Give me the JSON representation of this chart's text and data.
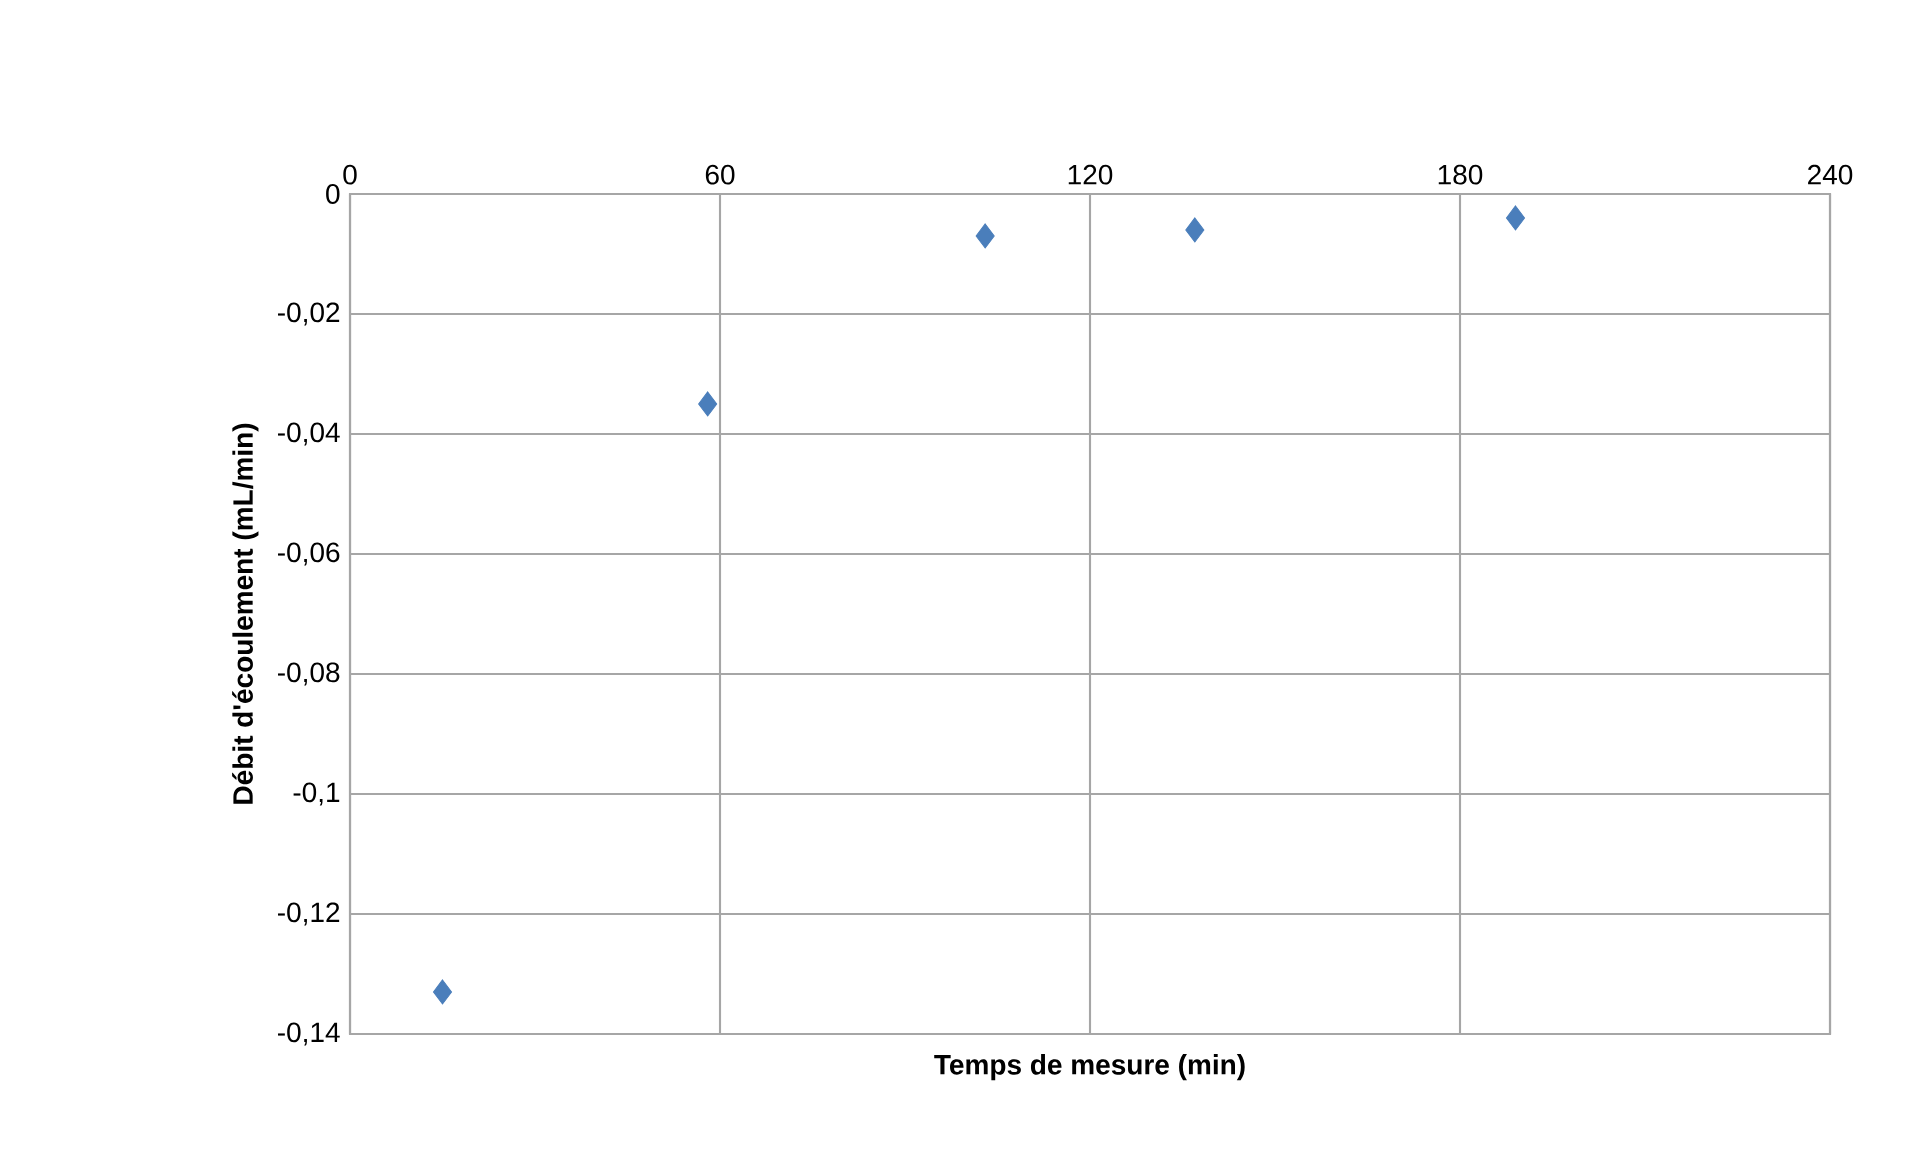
{
  "chart_data": {
    "type": "scatter",
    "xlabel": "Temps de mesure (min)",
    "ylabel": "Débit d'écoulement (mL/min)",
    "x": [
      15,
      58,
      103,
      137,
      189
    ],
    "values": [
      -0.133,
      -0.035,
      -0.007,
      -0.006,
      -0.004
    ],
    "color": "#4a7ebb",
    "marker": "diamond",
    "grid": true,
    "xlim": [
      0,
      240
    ],
    "xticks": [
      0,
      60,
      120,
      180,
      240
    ],
    "ylim": [
      -0.14,
      0
    ],
    "yticks": [
      {
        "value": -0.14,
        "label": "-0,14"
      },
      {
        "value": -0.12,
        "label": "-0,12"
      },
      {
        "value": -0.1,
        "label": "-0,1"
      },
      {
        "value": -0.08,
        "label": "-0,08"
      },
      {
        "value": -0.06,
        "label": "-0,06"
      },
      {
        "value": -0.04,
        "label": "-0,04"
      },
      {
        "value": -0.02,
        "label": "-0,02"
      },
      {
        "value": 0,
        "label": "0"
      }
    ]
  }
}
